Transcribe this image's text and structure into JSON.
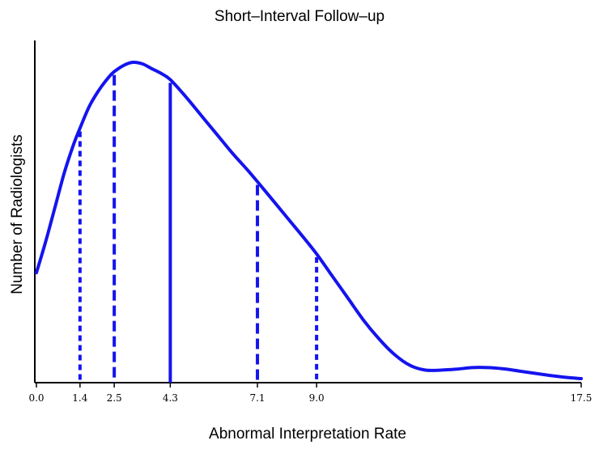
{
  "chart_data": {
    "type": "line",
    "title": "Short–Interval Follow–up",
    "xlabel": "Abnormal Interpretation Rate",
    "ylabel": "Number of Radiologists",
    "xlim": [
      0.0,
      17.5
    ],
    "ylim": [
      0,
      1
    ],
    "y_ticks_shown": false,
    "grid": false,
    "line_color": "#1414ee",
    "x_ticks": [
      {
        "value": 0.0,
        "label": "0.0"
      },
      {
        "value": 1.4,
        "label": "1.4"
      },
      {
        "value": 2.5,
        "label": "2.5"
      },
      {
        "value": 4.3,
        "label": "4.3"
      },
      {
        "value": 7.1,
        "label": "7.1"
      },
      {
        "value": 9.0,
        "label": "9.0"
      },
      {
        "value": 17.5,
        "label": "17.5"
      }
    ],
    "series": [
      {
        "x": [
          0.0,
          0.3,
          0.6,
          0.9,
          1.2,
          1.4,
          1.7,
          2.0,
          2.3,
          2.5,
          2.8,
          3.1,
          3.4,
          3.7,
          4.0,
          4.3,
          4.8,
          5.3,
          5.8,
          6.3,
          6.8,
          7.1,
          7.6,
          8.1,
          8.6,
          9.0,
          9.5,
          10.0,
          10.5,
          11.0,
          11.5,
          12.0,
          12.5,
          13.0,
          13.5,
          14.0,
          14.5,
          15.0,
          15.5,
          16.0,
          16.5,
          17.0,
          17.5
        ],
        "y": [
          0.35,
          0.45,
          0.56,
          0.67,
          0.76,
          0.81,
          0.88,
          0.93,
          0.97,
          0.99,
          1.01,
          1.02,
          1.015,
          1.0,
          0.985,
          0.965,
          0.91,
          0.85,
          0.79,
          0.73,
          0.675,
          0.64,
          0.58,
          0.52,
          0.46,
          0.41,
          0.34,
          0.27,
          0.2,
          0.14,
          0.09,
          0.055,
          0.04,
          0.04,
          0.043,
          0.048,
          0.048,
          0.044,
          0.037,
          0.03,
          0.023,
          0.017,
          0.013
        ]
      }
    ],
    "reference_lines": [
      {
        "x": 1.4,
        "style": "dotted"
      },
      {
        "x": 2.5,
        "style": "dashed"
      },
      {
        "x": 4.3,
        "style": "solid"
      },
      {
        "x": 7.1,
        "style": "dashed"
      },
      {
        "x": 9.0,
        "style": "dotted"
      }
    ]
  }
}
